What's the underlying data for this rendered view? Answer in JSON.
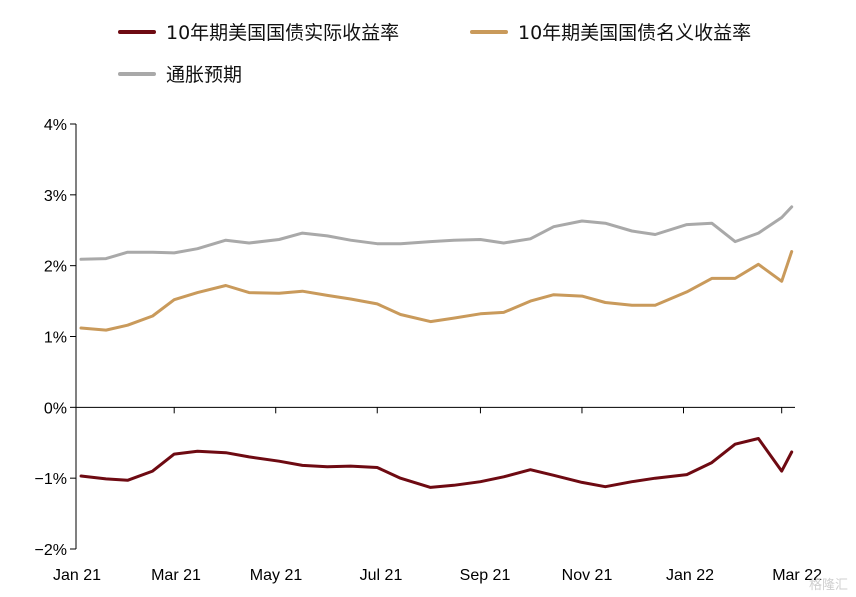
{
  "legend": {
    "real_yield": "10年期美国国债实际收益率",
    "nominal_yield": "10年期美国国债名义收益率",
    "breakeven": "通胀预期"
  },
  "watermark": "格隆汇",
  "colors": {
    "real_yield": "#6e0a12",
    "nominal_yield": "#c99a5b",
    "breakeven": "#a9a9a9",
    "axis": "#000000"
  },
  "chart_data": {
    "type": "line",
    "title": "",
    "xlabel": "",
    "ylabel": "",
    "ylim": [
      -2,
      4
    ],
    "yticks": [
      -2,
      -1,
      0,
      1,
      2,
      3,
      4
    ],
    "ytick_labels": [
      "−2%",
      "−1%",
      "0%",
      "1%",
      "2%",
      "3%",
      "4%"
    ],
    "xtick_labels": [
      "Jan 21",
      "Mar 21",
      "May 21",
      "Jul 21",
      "Sep 21",
      "Nov 21",
      "Jan 22",
      "Mar 22"
    ],
    "grid": false,
    "legend_position": "top",
    "x": [
      "2021-01-04",
      "2021-01-19",
      "2021-02-01",
      "2021-02-16",
      "2021-03-01",
      "2021-03-15",
      "2021-04-01",
      "2021-04-15",
      "2021-05-03",
      "2021-05-17",
      "2021-06-01",
      "2021-06-15",
      "2021-07-01",
      "2021-07-15",
      "2021-08-02",
      "2021-08-16",
      "2021-09-01",
      "2021-09-15",
      "2021-10-01",
      "2021-10-15",
      "2021-11-01",
      "2021-11-15",
      "2021-12-01",
      "2021-12-15",
      "2022-01-03",
      "2022-01-18",
      "2022-02-01",
      "2022-02-15",
      "2022-03-01",
      "2022-03-07"
    ],
    "series": [
      {
        "name": "10年期美国国债实际收益率",
        "values": [
          -0.97,
          -1.01,
          -1.03,
          -0.9,
          -0.66,
          -0.62,
          -0.64,
          -0.7,
          -0.76,
          -0.82,
          -0.84,
          -0.83,
          -0.85,
          -1.0,
          -1.13,
          -1.1,
          -1.05,
          -0.98,
          -0.88,
          -0.96,
          -1.06,
          -1.12,
          -1.05,
          -1.0,
          -0.95,
          -0.78,
          -0.52,
          -0.44,
          -0.9,
          -0.63
        ]
      },
      {
        "name": "10年期美国国债名义收益率",
        "values": [
          1.12,
          1.09,
          1.16,
          1.29,
          1.52,
          1.62,
          1.72,
          1.62,
          1.61,
          1.64,
          1.58,
          1.53,
          1.46,
          1.31,
          1.21,
          1.26,
          1.32,
          1.34,
          1.5,
          1.59,
          1.57,
          1.48,
          1.44,
          1.44,
          1.63,
          1.82,
          1.82,
          2.02,
          1.78,
          2.2
        ]
      },
      {
        "name": "通胀预期",
        "values": [
          2.09,
          2.1,
          2.19,
          2.19,
          2.18,
          2.24,
          2.36,
          2.32,
          2.37,
          2.46,
          2.42,
          2.36,
          2.31,
          2.31,
          2.34,
          2.36,
          2.37,
          2.32,
          2.38,
          2.55,
          2.63,
          2.6,
          2.49,
          2.44,
          2.58,
          2.6,
          2.34,
          2.46,
          2.68,
          2.83
        ]
      }
    ]
  }
}
